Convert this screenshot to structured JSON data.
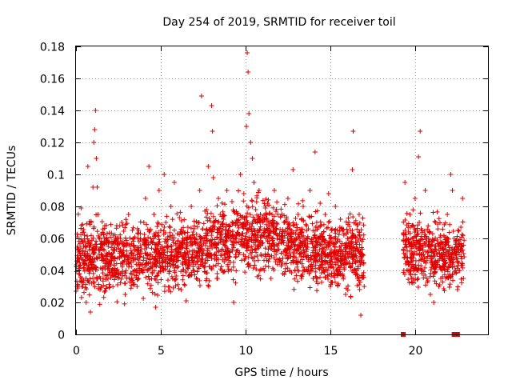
{
  "chart_data": {
    "type": "scatter",
    "title": "Day 254 of 2019, SRMTID for receiver toil",
    "xlabel": "GPS time / hours",
    "ylabel": "SRMTID / TECUs",
    "xlim": [
      0,
      24.3
    ],
    "ylim": [
      0,
      0.18
    ],
    "x_ticks": [
      0,
      5,
      10,
      15,
      20
    ],
    "y_ticks": [
      0,
      0.02,
      0.04,
      0.06,
      0.08,
      0.1,
      0.12,
      0.14,
      0.16,
      0.18
    ],
    "x_tick_labels": [
      "0",
      "5",
      "10",
      "15",
      "20"
    ],
    "y_tick_labels": [
      "0",
      "0.02",
      "0.04",
      "0.06",
      "0.08",
      "0.1",
      "0.12",
      "0.14",
      "0.16",
      "0.18"
    ],
    "grid": true,
    "marker": "+",
    "color": "#e00000",
    "series": [
      {
        "name": "SRMTID",
        "points": [
          [
            0.1,
            0.055
          ],
          [
            0.2,
            0.045
          ],
          [
            0.3,
            0.079
          ],
          [
            0.35,
            0.035
          ],
          [
            0.4,
            0.03
          ],
          [
            0.5,
            0.062
          ],
          [
            0.6,
            0.02
          ],
          [
            0.7,
            0.105
          ],
          [
            0.75,
            0.042
          ],
          [
            0.8,
            0.058
          ],
          [
            0.85,
            0.014
          ],
          [
            0.9,
            0.07
          ],
          [
            0.95,
            0.047
          ],
          [
            1.0,
            0.092
          ],
          [
            1.05,
            0.12
          ],
          [
            1.1,
            0.128
          ],
          [
            1.15,
            0.14
          ],
          [
            1.2,
            0.11
          ],
          [
            1.25,
            0.092
          ],
          [
            1.3,
            0.075
          ],
          [
            1.4,
            0.06
          ],
          [
            1.5,
            0.05
          ],
          [
            1.6,
            0.035
          ],
          [
            1.7,
            0.068
          ],
          [
            1.8,
            0.045
          ],
          [
            1.9,
            0.055
          ],
          [
            2.0,
            0.03
          ],
          [
            2.1,
            0.04
          ],
          [
            2.2,
            0.062
          ],
          [
            2.3,
            0.048
          ],
          [
            2.5,
            0.058
          ],
          [
            2.6,
            0.038
          ],
          [
            2.7,
            0.07
          ],
          [
            2.8,
            0.05
          ],
          [
            2.9,
            0.025
          ],
          [
            3.0,
            0.044
          ],
          [
            3.1,
            0.075
          ],
          [
            3.2,
            0.055
          ],
          [
            3.3,
            0.035
          ],
          [
            3.4,
            0.06
          ],
          [
            3.5,
            0.048
          ],
          [
            3.6,
            0.03
          ],
          [
            3.7,
            0.065
          ],
          [
            3.8,
            0.052
          ],
          [
            3.9,
            0.04
          ],
          [
            4.0,
            0.07
          ],
          [
            4.1,
            0.085
          ],
          [
            4.2,
            0.05
          ],
          [
            4.3,
            0.105
          ],
          [
            4.4,
            0.06
          ],
          [
            4.5,
            0.038
          ],
          [
            4.6,
            0.075
          ],
          [
            4.7,
            0.017
          ],
          [
            4.8,
            0.055
          ],
          [
            4.9,
            0.09
          ],
          [
            5.0,
            0.065
          ],
          [
            5.1,
            0.045
          ],
          [
            5.2,
            0.1
          ],
          [
            5.3,
            0.07
          ],
          [
            5.4,
            0.055
          ],
          [
            5.5,
            0.04
          ],
          [
            5.6,
            0.08
          ],
          [
            5.7,
            0.062
          ],
          [
            5.8,
            0.095
          ],
          [
            5.9,
            0.035
          ],
          [
            6.0,
            0.05
          ],
          [
            6.1,
            0.073
          ],
          [
            6.2,
            0.028
          ],
          [
            6.3,
            0.06
          ],
          [
            6.4,
            0.045
          ],
          [
            6.5,
            0.021
          ],
          [
            6.6,
            0.067
          ],
          [
            6.7,
            0.052
          ],
          [
            6.8,
            0.08
          ],
          [
            6.9,
            0.04
          ],
          [
            7.0,
            0.058
          ],
          [
            7.1,
            0.035
          ],
          [
            7.2,
            0.07
          ],
          [
            7.3,
            0.09
          ],
          [
            7.4,
            0.149
          ],
          [
            7.5,
            0.06
          ],
          [
            7.6,
            0.045
          ],
          [
            7.7,
            0.078
          ],
          [
            7.8,
            0.105
          ],
          [
            7.9,
            0.055
          ],
          [
            8.0,
            0.143
          ],
          [
            8.05,
            0.127
          ],
          [
            8.1,
            0.098
          ],
          [
            8.2,
            0.07
          ],
          [
            8.3,
            0.048
          ],
          [
            8.4,
            0.085
          ],
          [
            8.5,
            0.06
          ],
          [
            8.6,
            0.04
          ],
          [
            8.7,
            0.072
          ],
          [
            8.8,
            0.052
          ],
          [
            8.9,
            0.09
          ],
          [
            9.0,
            0.065
          ],
          [
            9.1,
            0.045
          ],
          [
            9.2,
            0.083
          ],
          [
            9.3,
            0.02
          ],
          [
            9.4,
            0.058
          ],
          [
            9.5,
            0.075
          ],
          [
            9.6,
            0.05
          ],
          [
            9.7,
            0.1
          ],
          [
            9.8,
            0.068
          ],
          [
            9.9,
            0.088
          ],
          [
            10.0,
            0.06
          ],
          [
            10.05,
            0.13
          ],
          [
            10.1,
            0.176
          ],
          [
            10.15,
            0.164
          ],
          [
            10.2,
            0.138
          ],
          [
            10.3,
            0.12
          ],
          [
            10.4,
            0.11
          ],
          [
            10.5,
            0.095
          ],
          [
            10.6,
            0.078
          ],
          [
            10.7,
            0.065
          ],
          [
            10.8,
            0.09
          ],
          [
            10.9,
            0.05
          ],
          [
            11.0,
            0.07
          ],
          [
            11.1,
            0.04
          ],
          [
            11.2,
            0.06
          ],
          [
            11.3,
            0.082
          ],
          [
            11.4,
            0.055
          ],
          [
            11.5,
            0.035
          ],
          [
            11.6,
            0.068
          ],
          [
            11.7,
            0.09
          ],
          [
            11.8,
            0.05
          ],
          [
            11.9,
            0.075
          ],
          [
            12.0,
            0.045
          ],
          [
            12.1,
            0.06
          ],
          [
            12.2,
            0.038
          ],
          [
            12.3,
            0.07
          ],
          [
            12.4,
            0.052
          ],
          [
            12.5,
            0.085
          ],
          [
            12.6,
            0.04
          ],
          [
            12.7,
            0.065
          ],
          [
            12.8,
            0.103
          ],
          [
            12.9,
            0.055
          ],
          [
            13.0,
            0.045
          ],
          [
            13.1,
            0.075
          ],
          [
            13.2,
            0.06
          ],
          [
            13.3,
            0.035
          ],
          [
            13.4,
            0.08
          ],
          [
            13.5,
            0.05
          ],
          [
            13.6,
            0.068
          ],
          [
            13.7,
            0.042
          ],
          [
            13.8,
            0.09
          ],
          [
            13.9,
            0.058
          ],
          [
            14.0,
            0.035
          ],
          [
            14.1,
            0.114
          ],
          [
            14.2,
            0.07
          ],
          [
            14.3,
            0.05
          ],
          [
            14.4,
            0.082
          ],
          [
            14.5,
            0.062
          ],
          [
            14.6,
            0.04
          ],
          [
            14.7,
            0.075
          ],
          [
            14.8,
            0.055
          ],
          [
            14.9,
            0.088
          ],
          [
            15.0,
            0.03
          ],
          [
            15.1,
            0.066
          ],
          [
            15.2,
            0.048
          ],
          [
            15.3,
            0.08
          ],
          [
            15.4,
            0.058
          ],
          [
            15.5,
            0.038
          ],
          [
            15.6,
            0.072
          ],
          [
            15.7,
            0.05
          ],
          [
            15.8,
            0.062
          ],
          [
            15.9,
            0.025
          ],
          [
            16.0,
            0.045
          ],
          [
            16.1,
            0.07
          ],
          [
            16.2,
            0.055
          ],
          [
            16.3,
            0.103
          ],
          [
            16.35,
            0.127
          ],
          [
            16.4,
            0.04
          ],
          [
            16.5,
            0.06
          ],
          [
            16.6,
            0.035
          ],
          [
            16.7,
            0.075
          ],
          [
            16.8,
            0.012
          ],
          [
            16.9,
            0.05
          ],
          [
            17.0,
            0.03
          ],
          [
            19.4,
            0.095
          ],
          [
            19.5,
            0.06
          ],
          [
            19.6,
            0.045
          ],
          [
            19.7,
            0.075
          ],
          [
            19.8,
            0.035
          ],
          [
            19.9,
            0.055
          ],
          [
            20.0,
            0.085
          ],
          [
            20.1,
            0.04
          ],
          [
            20.2,
            0.111
          ],
          [
            20.3,
            0.127
          ],
          [
            20.4,
            0.065
          ],
          [
            20.5,
            0.05
          ],
          [
            20.6,
            0.09
          ],
          [
            20.7,
            0.035
          ],
          [
            20.8,
            0.06
          ],
          [
            20.9,
            0.025
          ],
          [
            21.0,
            0.045
          ],
          [
            21.1,
            0.02
          ],
          [
            21.2,
            0.07
          ],
          [
            21.3,
            0.05
          ],
          [
            21.4,
            0.03
          ],
          [
            21.5,
            0.062
          ],
          [
            21.6,
            0.04
          ],
          [
            21.7,
            0.055
          ],
          [
            21.8,
            0.035
          ],
          [
            21.9,
            0.075
          ],
          [
            22.0,
            0.048
          ],
          [
            22.1,
            0.1
          ],
          [
            22.2,
            0.09
          ],
          [
            22.3,
            0.06
          ],
          [
            22.4,
            0.04
          ],
          [
            22.5,
            0.028
          ],
          [
            22.6,
            0.05
          ],
          [
            22.7,
            0.067
          ],
          [
            22.8,
            0.085
          ],
          [
            22.85,
            0.035
          ]
        ]
      }
    ],
    "cluster_segments": [
      {
        "x_start": 0.0,
        "x_end": 17.0,
        "center_left": 0.048,
        "center_right": 0.05,
        "center_peak": 0.063,
        "peak_at": 10.2,
        "spread": 0.019
      },
      {
        "x_start": 19.3,
        "x_end": 22.9,
        "center_left": 0.053,
        "center_right": 0.05,
        "center_peak": 0.05,
        "peak_at": 21.0,
        "spread": 0.018
      }
    ],
    "gap_markers": [
      {
        "x": 19.3,
        "y": 0
      },
      {
        "x": 22.3,
        "y": 0
      },
      {
        "x": 22.5,
        "y": 0
      }
    ]
  }
}
